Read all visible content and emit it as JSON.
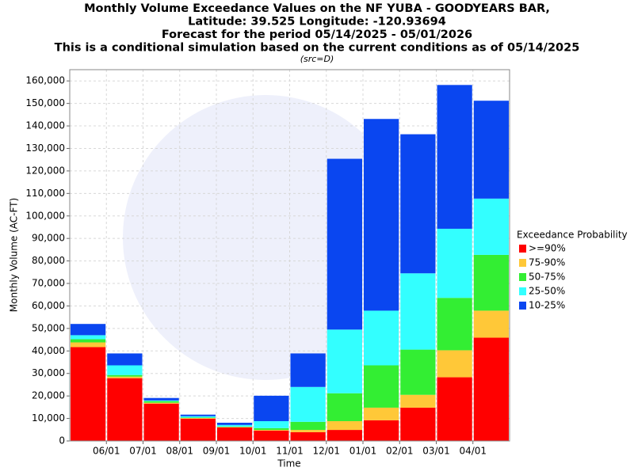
{
  "chart_data": {
    "type": "stacked_bar",
    "title_lines": [
      "Monthly Volume Exceedance Values on the NF YUBA - GOODYEARS BAR,",
      "Latitude: 39.525 Longitude: -120.93694",
      "Forecast for the period 05/14/2025 - 05/01/2026",
      "This is a conditional simulation based on the current conditions as of 05/14/2025"
    ],
    "subtitle": "(src=D)",
    "y_label": "Monthly Volume (AC-FT)",
    "x_label": "Time",
    "legend_title": "Exceedance Probability",
    "categories": [
      null,
      null,
      null,
      null,
      null,
      null,
      null,
      null,
      null,
      null,
      null,
      null
    ],
    "xtick_labels": [
      "06/01",
      "07/01",
      "08/01",
      "09/01",
      "10/01",
      "11/01",
      "12/01",
      "01/01",
      "02/01",
      "03/01",
      "04/01"
    ],
    "series": [
      {
        "name": ">=90%",
        "color": "#ff0000",
        "values": [
          41700,
          27900,
          16600,
          9900,
          6000,
          4600,
          3900,
          4900,
          9200,
          14800,
          28300,
          45900
        ]
      },
      {
        "name": "75-90%",
        "color": "#ffc838",
        "values": [
          2100,
          700,
          400,
          300,
          200,
          300,
          1000,
          3900,
          5600,
          5700,
          12000,
          12000
        ]
      },
      {
        "name": "50-75%",
        "color": "#33ee33",
        "values": [
          1400,
          700,
          700,
          200,
          200,
          800,
          3600,
          12400,
          18800,
          20100,
          23300,
          24800
        ]
      },
      {
        "name": "25-50%",
        "color": "#33ffff",
        "values": [
          1800,
          4300,
          300,
          600,
          700,
          3100,
          15500,
          28300,
          24300,
          33900,
          30700,
          25000
        ]
      },
      {
        "name": "10-25%",
        "color": "#0a46f0",
        "values": [
          5000,
          5300,
          1100,
          700,
          1000,
          11300,
          14900,
          75900,
          85200,
          61800,
          63900,
          43500
        ]
      }
    ],
    "ylim": [
      0,
      165000
    ],
    "yticks": [
      {
        "value": 0,
        "label": "0"
      },
      {
        "value": 10000,
        "label": "10,000"
      },
      {
        "value": 20000,
        "label": "20,000"
      },
      {
        "value": 30000,
        "label": "30,000"
      },
      {
        "value": 40000,
        "label": "40,000"
      },
      {
        "value": 50000,
        "label": "50,000"
      },
      {
        "value": 60000,
        "label": "60,000"
      },
      {
        "value": 70000,
        "label": "70,000"
      },
      {
        "value": 80000,
        "label": "80,000"
      },
      {
        "value": 90000,
        "label": "90,000"
      },
      {
        "value": 100000,
        "label": "100,000"
      },
      {
        "value": 110000,
        "label": "110,000"
      },
      {
        "value": 120000,
        "label": "120,000"
      },
      {
        "value": 130000,
        "label": "130,000"
      },
      {
        "value": 140000,
        "label": "140,000"
      },
      {
        "value": 150000,
        "label": "150,000"
      },
      {
        "value": 160000,
        "label": "160,000"
      }
    ],
    "grid": true
  }
}
